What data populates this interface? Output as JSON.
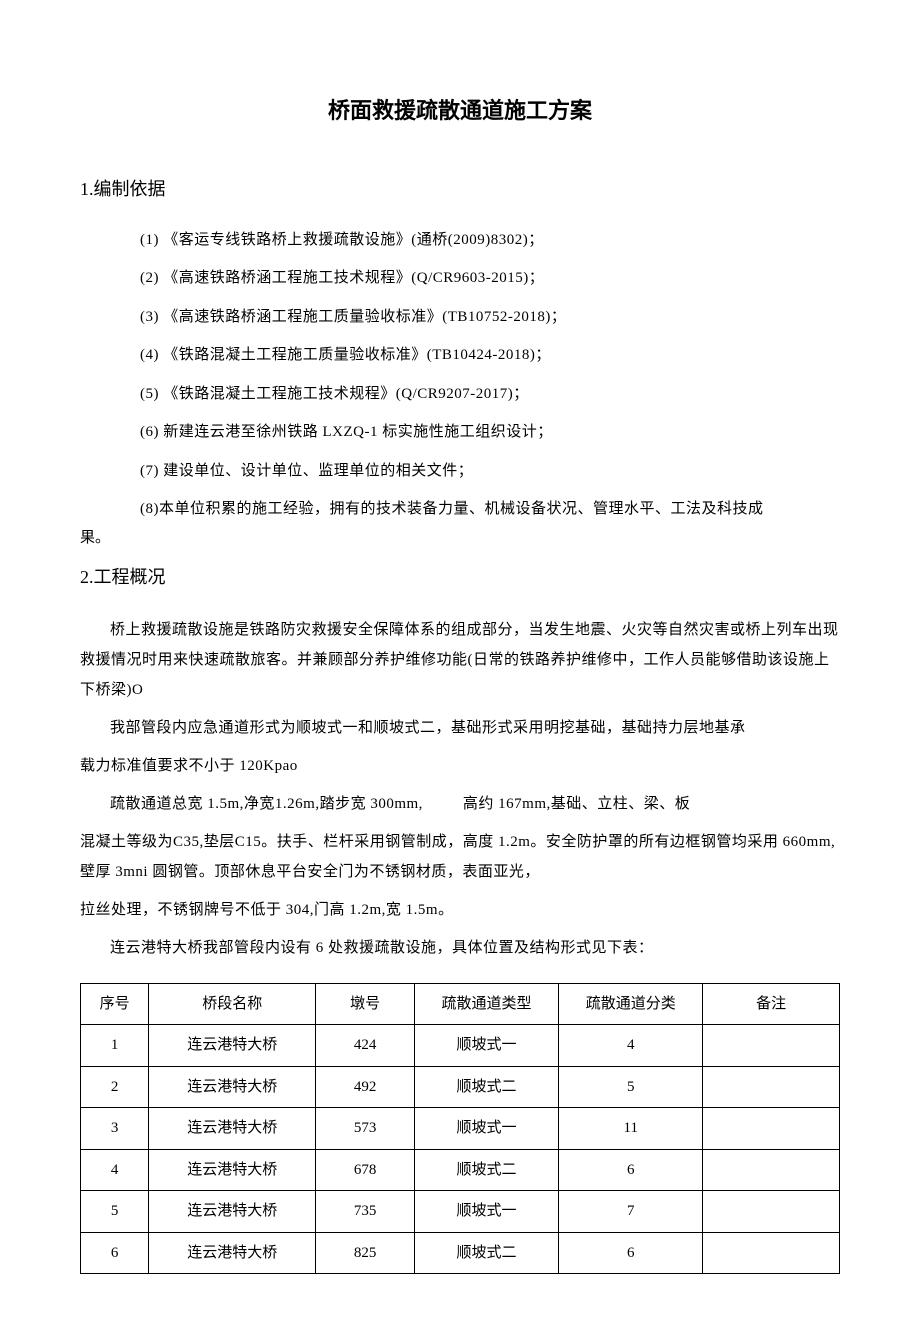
{
  "title": "桥面救援疏散通道施工方案",
  "sections": {
    "s1": {
      "heading": "1.编制依据",
      "refs": [
        "(1) 《客运专线铁路桥上救援疏散设施》(通桥(2009)8302)；",
        "(2) 《高速铁路桥涵工程施工技术规程》(Q/CR9603-2015)；",
        "(3) 《高速铁路桥涵工程施工质量验收标准》(TB10752-2018)；",
        "(4) 《铁路混凝土工程施工质量验收标准》(TB10424-2018)；",
        "(5) 《铁路混凝土工程施工技术规程》(Q/CR9207-2017)；",
        "(6) 新建连云港至徐州铁路 LXZQ-1 标实施性施工组织设计；",
        "(7) 建设单位、设计单位、监理单位的相关文件；"
      ],
      "ref8_part1": "(8)本单位积累的施工经验，拥有的技术装备力量、机械设备状况、管理水平、工法及科技成",
      "ref8_part2": "果。"
    },
    "s2": {
      "heading": "2.工程概况",
      "p1": "桥上救援疏散设施是铁路防灾救援安全保障体系的组成部分，当发生地震、火灾等自然灾害或桥上列车出现救援情况时用来快速疏散旅客。并兼顾部分养护维修功能(日常的铁路养护维修中，工作人员能够借助该设施上下桥梁)O",
      "p2": "我部管段内应急通道形式为顺坡式一和顺坡式二，基础形式采用明挖基础，基础持力层地基承",
      "p2b": "载力标准值要求不小于 120Kpao",
      "p3a": "疏散通道总宽 1.5m,净宽1.26m,踏步宽 300mm,",
      "p3b": "高约 167mm,基础、立柱、梁、板",
      "p3c": "混凝土等级为C35,垫层C15。扶手、栏杆采用钢管制成，高度 1.2m。安全防护罩的所有边框钢管均采用 660mm,壁厚 3mni 圆钢管。顶部休息平台安全门为不锈钢材质，表面亚光，",
      "p3d": "拉丝处理，不锈钢牌号不低于 304,门高 1.2m,宽 1.5m。",
      "p4": "连云港特大桥我部管段内设有 6 处救援疏散设施，具体位置及结构形式见下表："
    }
  },
  "table": {
    "headers": {
      "seq": "序号",
      "name": "桥段名称",
      "pier": "墩号",
      "type": "疏散通道类型",
      "class": "疏散通道分类",
      "remark": "备注"
    },
    "rows": [
      {
        "seq": "1",
        "name": "连云港特大桥",
        "pier": "424",
        "type": "顺坡式一",
        "class": "4",
        "remark": ""
      },
      {
        "seq": "2",
        "name": "连云港特大桥",
        "pier": "492",
        "type": "顺坡式二",
        "class": "5",
        "remark": ""
      },
      {
        "seq": "3",
        "name": "连云港特大桥",
        "pier": "573",
        "type": "顺坡式一",
        "class": "11",
        "remark": ""
      },
      {
        "seq": "4",
        "name": "连云港特大桥",
        "pier": "678",
        "type": "顺坡式二",
        "class": "6",
        "remark": ""
      },
      {
        "seq": "5",
        "name": "连云港特大桥",
        "pier": "735",
        "type": "顺坡式一",
        "class": "7",
        "remark": ""
      },
      {
        "seq": "6",
        "name": "连云港特大桥",
        "pier": "825",
        "type": "顺坡式二",
        "class": "6",
        "remark": ""
      }
    ]
  }
}
